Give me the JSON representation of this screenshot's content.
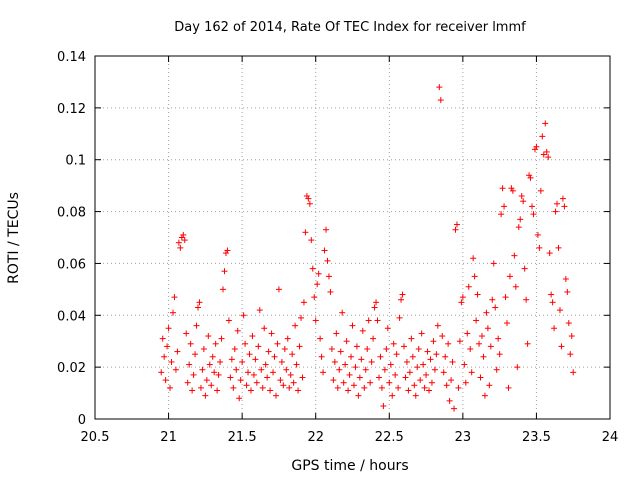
{
  "chart_data": {
    "type": "scatter",
    "title": "Day 162 of 2014, Rate Of TEC Index for receiver lmmf",
    "xlabel": "GPS time / hours",
    "ylabel": "ROTI / TECUs",
    "xlim": [
      20.5,
      24
    ],
    "ylim": [
      0,
      0.14
    ],
    "xticks": [
      20.5,
      21,
      21.5,
      22,
      22.5,
      23,
      23.5,
      24
    ],
    "xtick_labels": [
      "20.5",
      "21",
      "21.5",
      "22",
      "22.5",
      "23",
      "23.5",
      "24"
    ],
    "yticks": [
      0,
      0.02,
      0.04,
      0.06,
      0.08,
      0.1,
      0.12,
      0.14
    ],
    "ytick_labels": [
      "0",
      "0.02",
      "0.04",
      "0.06",
      "0.08",
      "0.1",
      "0.12",
      "0.14"
    ],
    "grid": true,
    "marker": "+",
    "marker_color": "#ff0000",
    "series": [
      {
        "name": "ROTI",
        "points": [
          [
            20.95,
            0.018
          ],
          [
            20.96,
            0.031
          ],
          [
            20.97,
            0.024
          ],
          [
            20.98,
            0.015
          ],
          [
            20.99,
            0.028
          ],
          [
            21.0,
            0.035
          ],
          [
            21.01,
            0.012
          ],
          [
            21.02,
            0.022
          ],
          [
            21.03,
            0.041
          ],
          [
            21.04,
            0.047
          ],
          [
            21.05,
            0.019
          ],
          [
            21.06,
            0.026
          ],
          [
            21.07,
            0.068
          ],
          [
            21.08,
            0.066
          ],
          [
            21.09,
            0.07
          ],
          [
            21.1,
            0.071
          ],
          [
            21.11,
            0.069
          ],
          [
            21.12,
            0.033
          ],
          [
            21.13,
            0.014
          ],
          [
            21.14,
            0.021
          ],
          [
            21.15,
            0.029
          ],
          [
            21.16,
            0.011
          ],
          [
            21.17,
            0.017
          ],
          [
            21.18,
            0.025
          ],
          [
            21.19,
            0.036
          ],
          [
            21.2,
            0.043
          ],
          [
            21.21,
            0.045
          ],
          [
            21.22,
            0.012
          ],
          [
            21.23,
            0.019
          ],
          [
            21.24,
            0.027
          ],
          [
            21.25,
            0.009
          ],
          [
            21.26,
            0.015
          ],
          [
            21.27,
            0.032
          ],
          [
            21.28,
            0.021
          ],
          [
            21.29,
            0.013
          ],
          [
            21.3,
            0.024
          ],
          [
            21.31,
            0.018
          ],
          [
            21.32,
            0.029
          ],
          [
            21.33,
            0.011
          ],
          [
            21.34,
            0.017
          ],
          [
            21.35,
            0.022
          ],
          [
            21.36,
            0.031
          ],
          [
            21.37,
            0.05
          ],
          [
            21.38,
            0.057
          ],
          [
            21.39,
            0.064
          ],
          [
            21.4,
            0.065
          ],
          [
            21.41,
            0.038
          ],
          [
            21.42,
            0.016
          ],
          [
            21.43,
            0.023
          ],
          [
            21.44,
            0.012
          ],
          [
            21.45,
            0.027
          ],
          [
            21.46,
            0.019
          ],
          [
            21.47,
            0.034
          ],
          [
            21.48,
            0.008
          ],
          [
            21.49,
            0.015
          ],
          [
            21.5,
            0.022
          ],
          [
            21.51,
            0.04
          ],
          [
            21.52,
            0.029
          ],
          [
            21.53,
            0.013
          ],
          [
            21.54,
            0.018
          ],
          [
            21.55,
            0.025
          ],
          [
            21.56,
            0.011
          ],
          [
            21.57,
            0.032
          ],
          [
            21.58,
            0.017
          ],
          [
            21.59,
            0.023
          ],
          [
            21.6,
            0.014
          ],
          [
            21.61,
            0.028
          ],
          [
            21.62,
            0.042
          ],
          [
            21.63,
            0.019
          ],
          [
            21.64,
            0.012
          ],
          [
            21.65,
            0.035
          ],
          [
            21.66,
            0.021
          ],
          [
            21.67,
            0.016
          ],
          [
            21.68,
            0.026
          ],
          [
            21.69,
            0.011
          ],
          [
            21.7,
            0.033
          ],
          [
            21.71,
            0.018
          ],
          [
            21.72,
            0.024
          ],
          [
            21.73,
            0.009
          ],
          [
            21.74,
            0.029
          ],
          [
            21.75,
            0.05
          ],
          [
            21.76,
            0.015
          ],
          [
            21.77,
            0.022
          ],
          [
            21.78,
            0.013
          ],
          [
            21.79,
            0.027
          ],
          [
            21.8,
            0.019
          ],
          [
            21.81,
            0.031
          ],
          [
            21.82,
            0.012
          ],
          [
            21.83,
            0.017
          ],
          [
            21.84,
            0.025
          ],
          [
            21.85,
            0.014
          ],
          [
            21.86,
            0.036
          ],
          [
            21.87,
            0.021
          ],
          [
            21.88,
            0.011
          ],
          [
            21.89,
            0.028
          ],
          [
            21.9,
            0.039
          ],
          [
            21.91,
            0.016
          ],
          [
            21.92,
            0.045
          ],
          [
            21.93,
            0.072
          ],
          [
            21.94,
            0.086
          ],
          [
            21.95,
            0.085
          ],
          [
            21.96,
            0.083
          ],
          [
            21.97,
            0.069
          ],
          [
            21.98,
            0.058
          ],
          [
            21.99,
            0.047
          ],
          [
            22.0,
            0.038
          ],
          [
            22.01,
            0.052
          ],
          [
            22.02,
            0.056
          ],
          [
            22.03,
            0.031
          ],
          [
            22.04,
            0.024
          ],
          [
            22.05,
            0.018
          ],
          [
            22.06,
            0.065
          ],
          [
            22.07,
            0.073
          ],
          [
            22.08,
            0.061
          ],
          [
            22.09,
            0.055
          ],
          [
            22.1,
            0.049
          ],
          [
            22.11,
            0.027
          ],
          [
            22.12,
            0.015
          ],
          [
            22.13,
            0.022
          ],
          [
            22.14,
            0.033
          ],
          [
            22.15,
            0.012
          ],
          [
            22.16,
            0.019
          ],
          [
            22.17,
            0.026
          ],
          [
            22.18,
            0.041
          ],
          [
            22.19,
            0.014
          ],
          [
            22.2,
            0.021
          ],
          [
            22.21,
            0.03
          ],
          [
            22.22,
            0.011
          ],
          [
            22.23,
            0.017
          ],
          [
            22.24,
            0.024
          ],
          [
            22.25,
            0.036
          ],
          [
            22.26,
            0.013
          ],
          [
            22.27,
            0.02
          ],
          [
            22.28,
            0.028
          ],
          [
            22.29,
            0.009
          ],
          [
            22.3,
            0.016
          ],
          [
            22.31,
            0.023
          ],
          [
            22.32,
            0.034
          ],
          [
            22.33,
            0.012
          ],
          [
            22.34,
            0.019
          ],
          [
            22.35,
            0.027
          ],
          [
            22.36,
            0.038
          ],
          [
            22.37,
            0.014
          ],
          [
            22.38,
            0.022
          ],
          [
            22.39,
            0.031
          ],
          [
            22.4,
            0.043
          ],
          [
            22.41,
            0.045
          ],
          [
            22.42,
            0.038
          ],
          [
            22.43,
            0.016
          ],
          [
            22.44,
            0.024
          ],
          [
            22.45,
            0.012
          ],
          [
            22.46,
            0.005
          ],
          [
            22.47,
            0.019
          ],
          [
            22.48,
            0.027
          ],
          [
            22.49,
            0.035
          ],
          [
            22.5,
            0.014
          ],
          [
            22.51,
            0.021
          ],
          [
            22.52,
            0.009
          ],
          [
            22.53,
            0.029
          ],
          [
            22.54,
            0.017
          ],
          [
            22.55,
            0.025
          ],
          [
            22.56,
            0.012
          ],
          [
            22.57,
            0.039
          ],
          [
            22.58,
            0.046
          ],
          [
            22.59,
            0.048
          ],
          [
            22.6,
            0.028
          ],
          [
            22.61,
            0.016
          ],
          [
            22.62,
            0.022
          ],
          [
            22.63,
            0.011
          ],
          [
            22.64,
            0.018
          ],
          [
            22.65,
            0.031
          ],
          [
            22.66,
            0.024
          ],
          [
            22.67,
            0.013
          ],
          [
            22.68,
            0.009
          ],
          [
            22.69,
            0.02
          ],
          [
            22.7,
            0.027
          ],
          [
            22.71,
            0.015
          ],
          [
            22.72,
            0.033
          ],
          [
            22.73,
            0.021
          ],
          [
            22.74,
            0.012
          ],
          [
            22.75,
            0.017
          ],
          [
            22.76,
            0.026
          ],
          [
            22.77,
            0.011
          ],
          [
            22.78,
            0.023
          ],
          [
            22.79,
            0.014
          ],
          [
            22.8,
            0.03
          ],
          [
            22.81,
            0.019
          ],
          [
            22.82,
            0.025
          ],
          [
            22.83,
            0.036
          ],
          [
            22.84,
            0.128
          ],
          [
            22.85,
            0.123
          ],
          [
            22.86,
            0.032
          ],
          [
            22.87,
            0.018
          ],
          [
            22.88,
            0.024
          ],
          [
            22.89,
            0.013
          ],
          [
            22.9,
            0.029
          ],
          [
            22.91,
            0.007
          ],
          [
            22.92,
            0.015
          ],
          [
            22.93,
            0.022
          ],
          [
            22.94,
            0.004
          ],
          [
            22.95,
            0.073
          ],
          [
            22.96,
            0.075
          ],
          [
            22.97,
            0.012
          ],
          [
            22.98,
            0.03
          ],
          [
            22.99,
            0.045
          ],
          [
            23.0,
            0.047
          ],
          [
            23.01,
            0.021
          ],
          [
            23.02,
            0.014
          ],
          [
            23.03,
            0.033
          ],
          [
            23.04,
            0.051
          ],
          [
            23.05,
            0.027
          ],
          [
            23.06,
            0.018
          ],
          [
            23.07,
            0.062
          ],
          [
            23.08,
            0.055
          ],
          [
            23.09,
            0.038
          ],
          [
            23.1,
            0.048
          ],
          [
            23.11,
            0.029
          ],
          [
            23.12,
            0.016
          ],
          [
            23.13,
            0.032
          ],
          [
            23.14,
            0.024
          ],
          [
            23.15,
            0.009
          ],
          [
            23.16,
            0.041
          ],
          [
            23.17,
            0.035
          ],
          [
            23.18,
            0.013
          ],
          [
            23.19,
            0.028
          ],
          [
            23.2,
            0.046
          ],
          [
            23.21,
            0.06
          ],
          [
            23.22,
            0.043
          ],
          [
            23.23,
            0.019
          ],
          [
            23.24,
            0.031
          ],
          [
            23.25,
            0.025
          ],
          [
            23.26,
            0.079
          ],
          [
            23.27,
            0.089
          ],
          [
            23.28,
            0.082
          ],
          [
            23.29,
            0.047
          ],
          [
            23.3,
            0.037
          ],
          [
            23.31,
            0.012
          ],
          [
            23.32,
            0.055
          ],
          [
            23.33,
            0.089
          ],
          [
            23.34,
            0.088
          ],
          [
            23.35,
            0.063
          ],
          [
            23.36,
            0.051
          ],
          [
            23.37,
            0.02
          ],
          [
            23.38,
            0.074
          ],
          [
            23.39,
            0.077
          ],
          [
            23.4,
            0.086
          ],
          [
            23.41,
            0.084
          ],
          [
            23.42,
            0.058
          ],
          [
            23.43,
            0.046
          ],
          [
            23.44,
            0.029
          ],
          [
            23.45,
            0.094
          ],
          [
            23.46,
            0.093
          ],
          [
            23.47,
            0.082
          ],
          [
            23.48,
            0.079
          ],
          [
            23.49,
            0.104
          ],
          [
            23.5,
            0.105
          ],
          [
            23.51,
            0.071
          ],
          [
            23.52,
            0.066
          ],
          [
            23.53,
            0.088
          ],
          [
            23.54,
            0.109
          ],
          [
            23.55,
            0.102
          ],
          [
            23.56,
            0.114
          ],
          [
            23.57,
            0.103
          ],
          [
            23.58,
            0.101
          ],
          [
            23.59,
            0.064
          ],
          [
            23.6,
            0.048
          ],
          [
            23.61,
            0.045
          ],
          [
            23.62,
            0.035
          ],
          [
            23.63,
            0.08
          ],
          [
            23.64,
            0.083
          ],
          [
            23.65,
            0.066
          ],
          [
            23.66,
            0.042
          ],
          [
            23.67,
            0.028
          ],
          [
            23.68,
            0.085
          ],
          [
            23.69,
            0.082
          ],
          [
            23.7,
            0.054
          ],
          [
            23.71,
            0.049
          ],
          [
            23.72,
            0.037
          ],
          [
            23.73,
            0.025
          ],
          [
            23.74,
            0.032
          ],
          [
            23.75,
            0.018
          ]
        ]
      }
    ]
  }
}
